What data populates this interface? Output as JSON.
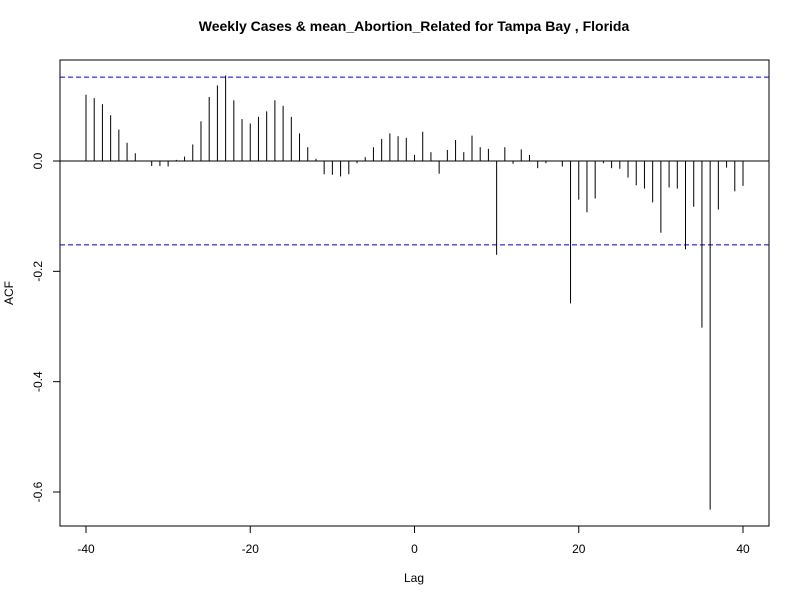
{
  "chart_data": {
    "type": "bar",
    "title": "Weekly Cases & mean_Abortion_Related for Tampa Bay , Florida",
    "xlabel": "Lag",
    "ylabel": "ACF",
    "xlim": [
      -41,
      41
    ],
    "ylim": [
      -0.66,
      0.18
    ],
    "x_ticks": [
      -40,
      -20,
      0,
      20,
      40
    ],
    "y_ticks": [
      0.0,
      -0.2,
      -0.4,
      -0.6
    ],
    "x_tick_labels": [
      "-40",
      "-20",
      "0",
      "20",
      "40"
    ],
    "y_tick_labels": [
      "0.0",
      "-0.2",
      "-0.4",
      "-0.6"
    ],
    "confidence_bounds": [
      0.152,
      -0.152
    ],
    "colors": {
      "bars": "#000000",
      "confidence": "#0000cc",
      "zero_line": "#000000"
    },
    "x": [
      -40,
      -39,
      -38,
      -37,
      -36,
      -35,
      -34,
      -33,
      -32,
      -31,
      -30,
      -29,
      -28,
      -27,
      -26,
      -25,
      -24,
      -23,
      -22,
      -21,
      -20,
      -19,
      -18,
      -17,
      -16,
      -15,
      -14,
      -13,
      -12,
      -11,
      -10,
      -9,
      -8,
      -7,
      -6,
      -5,
      -4,
      -3,
      -2,
      -1,
      0,
      1,
      2,
      3,
      4,
      5,
      6,
      7,
      8,
      9,
      10,
      11,
      12,
      13,
      14,
      15,
      16,
      17,
      18,
      19,
      20,
      21,
      22,
      23,
      24,
      25,
      26,
      27,
      28,
      29,
      30,
      31,
      32,
      33,
      34,
      35,
      36,
      37,
      38,
      39,
      40
    ],
    "values": [
      0.12,
      0.114,
      0.103,
      0.083,
      0.057,
      0.033,
      0.014,
      0.0,
      -0.009,
      -0.009,
      -0.01,
      0.002,
      0.008,
      0.03,
      0.072,
      0.116,
      0.137,
      0.155,
      0.11,
      0.076,
      0.068,
      0.08,
      0.09,
      0.11,
      0.1,
      0.08,
      0.05,
      0.025,
      0.004,
      -0.024,
      -0.025,
      -0.028,
      -0.024,
      -0.004,
      0.007,
      0.025,
      0.04,
      0.05,
      0.045,
      0.042,
      0.011,
      0.053,
      0.016,
      -0.023,
      0.02,
      0.038,
      0.016,
      0.046,
      0.025,
      0.022,
      -0.17,
      0.025,
      -0.005,
      0.021,
      0.011,
      -0.013,
      -0.004,
      0.0,
      -0.01,
      -0.258,
      -0.07,
      -0.093,
      -0.068,
      -0.004,
      -0.013,
      -0.014,
      -0.03,
      -0.044,
      -0.05,
      -0.075,
      -0.13,
      -0.048,
      -0.05,
      -0.16,
      -0.083,
      -0.302,
      -0.632,
      -0.088,
      -0.012,
      -0.055,
      -0.045
    ]
  }
}
